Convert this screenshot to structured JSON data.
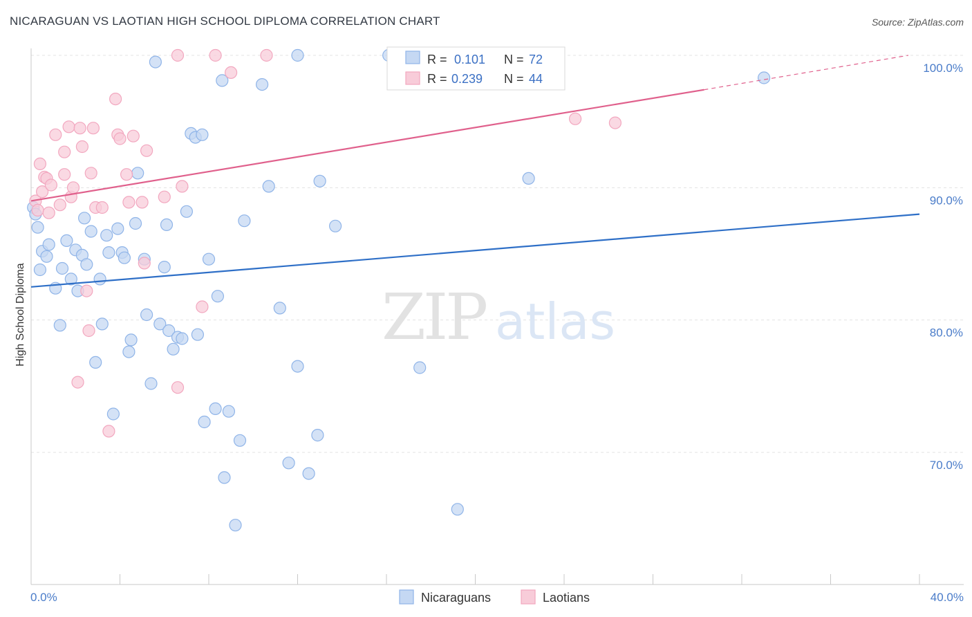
{
  "chart_data": {
    "type": "scatter",
    "title": "NICARAGUAN VS LAOTIAN HIGH SCHOOL DIPLOMA CORRELATION CHART",
    "source": "Source: ZipAtlas.com",
    "ylabel": "High School Diploma",
    "xlim": [
      0,
      40
    ],
    "ylim": [
      60,
      100
    ],
    "x_tick_labels": [
      "0.0%",
      "40.0%"
    ],
    "y_ticks": [
      {
        "value": 100,
        "label": "100.0%"
      },
      {
        "value": 90,
        "label": "90.0%"
      },
      {
        "value": 80,
        "label": "80.0%"
      },
      {
        "value": 70,
        "label": "70.0%"
      }
    ],
    "watermark": {
      "zip": "ZIP",
      "atlas": "atlas"
    },
    "legend": [
      {
        "r_label": "R =",
        "r_value": "0.101",
        "n_label": "N =",
        "n_value": "72"
      },
      {
        "r_label": "R =",
        "r_value": "0.239",
        "n_label": "N =",
        "n_value": "44"
      }
    ],
    "series": [
      {
        "name": "Nicaraguans",
        "color": "#8fb4e8",
        "fill": "#c5d8f3",
        "line_color": "#2e6fc7",
        "trend": {
          "x0": 0,
          "y0": 82.5,
          "x1": 40,
          "y1": 88.0
        },
        "points": [
          [
            0.1,
            88.5
          ],
          [
            0.2,
            88.0
          ],
          [
            0.3,
            87.0
          ],
          [
            0.4,
            83.8
          ],
          [
            0.5,
            85.2
          ],
          [
            0.7,
            84.8
          ],
          [
            0.8,
            85.7
          ],
          [
            1.1,
            82.4
          ],
          [
            1.3,
            79.6
          ],
          [
            1.4,
            83.9
          ],
          [
            1.6,
            86.0
          ],
          [
            1.8,
            83.1
          ],
          [
            2.0,
            85.3
          ],
          [
            2.1,
            82.2
          ],
          [
            2.3,
            84.9
          ],
          [
            2.4,
            87.7
          ],
          [
            2.5,
            84.2
          ],
          [
            2.7,
            86.7
          ],
          [
            2.9,
            76.8
          ],
          [
            3.1,
            83.1
          ],
          [
            3.2,
            79.7
          ],
          [
            3.4,
            86.4
          ],
          [
            3.5,
            85.1
          ],
          [
            3.7,
            72.9
          ],
          [
            3.9,
            86.9
          ],
          [
            4.1,
            85.1
          ],
          [
            4.2,
            84.7
          ],
          [
            4.4,
            77.6
          ],
          [
            4.5,
            78.5
          ],
          [
            4.7,
            87.3
          ],
          [
            4.8,
            91.1
          ],
          [
            5.1,
            84.6
          ],
          [
            5.2,
            80.4
          ],
          [
            5.4,
            75.2
          ],
          [
            5.6,
            99.5
          ],
          [
            5.8,
            79.7
          ],
          [
            6.0,
            84.0
          ],
          [
            6.1,
            87.2
          ],
          [
            6.2,
            79.2
          ],
          [
            6.4,
            77.8
          ],
          [
            6.6,
            78.7
          ],
          [
            6.8,
            78.6
          ],
          [
            7.0,
            88.2
          ],
          [
            7.2,
            94.1
          ],
          [
            7.4,
            93.8
          ],
          [
            7.5,
            78.9
          ],
          [
            7.7,
            94.0
          ],
          [
            7.8,
            72.3
          ],
          [
            8.0,
            84.6
          ],
          [
            8.3,
            73.3
          ],
          [
            8.4,
            81.8
          ],
          [
            8.6,
            98.1
          ],
          [
            8.7,
            68.1
          ],
          [
            8.9,
            73.1
          ],
          [
            9.2,
            64.5
          ],
          [
            9.4,
            70.9
          ],
          [
            9.6,
            87.5
          ],
          [
            10.4,
            97.8
          ],
          [
            10.7,
            90.1
          ],
          [
            11.2,
            80.9
          ],
          [
            11.6,
            69.2
          ],
          [
            12.0,
            76.5
          ],
          [
            12.0,
            100.0
          ],
          [
            12.5,
            68.4
          ],
          [
            12.9,
            71.3
          ],
          [
            13.0,
            90.5
          ],
          [
            13.7,
            87.1
          ],
          [
            16.1,
            100.0
          ],
          [
            17.5,
            76.4
          ],
          [
            19.2,
            65.7
          ],
          [
            22.4,
            90.7
          ],
          [
            33.0,
            98.3
          ]
        ]
      },
      {
        "name": "Laotians",
        "color": "#f2a7bf",
        "fill": "#f8ccd9",
        "line_color": "#e0608c",
        "trend": {
          "x0": 0,
          "y0": 89.0,
          "x1": 30.3,
          "y1": 97.4
        },
        "trend_ext": {
          "x0": 30.3,
          "y0": 97.4,
          "x1": 39.5,
          "y1": 100.0
        },
        "points": [
          [
            0.2,
            89.0
          ],
          [
            0.3,
            88.3
          ],
          [
            0.4,
            91.8
          ],
          [
            0.5,
            89.7
          ],
          [
            0.6,
            90.8
          ],
          [
            0.7,
            90.7
          ],
          [
            0.8,
            88.1
          ],
          [
            0.9,
            90.2
          ],
          [
            1.1,
            94.0
          ],
          [
            1.3,
            88.7
          ],
          [
            1.5,
            91.0
          ],
          [
            1.5,
            92.7
          ],
          [
            1.7,
            94.6
          ],
          [
            1.8,
            89.3
          ],
          [
            1.9,
            90.0
          ],
          [
            2.1,
            75.3
          ],
          [
            2.2,
            94.5
          ],
          [
            2.3,
            93.1
          ],
          [
            2.5,
            82.2
          ],
          [
            2.6,
            79.2
          ],
          [
            2.7,
            91.1
          ],
          [
            2.8,
            94.5
          ],
          [
            2.9,
            88.5
          ],
          [
            3.2,
            88.5
          ],
          [
            3.5,
            71.6
          ],
          [
            3.8,
            96.7
          ],
          [
            3.9,
            94.0
          ],
          [
            4.0,
            93.7
          ],
          [
            4.3,
            91.0
          ],
          [
            4.4,
            88.9
          ],
          [
            4.6,
            93.9
          ],
          [
            5.0,
            88.9
          ],
          [
            5.1,
            84.3
          ],
          [
            5.2,
            92.8
          ],
          [
            6.0,
            89.3
          ],
          [
            6.6,
            100.0
          ],
          [
            6.6,
            74.9
          ],
          [
            6.8,
            90.1
          ],
          [
            7.7,
            81.0
          ],
          [
            8.3,
            100.0
          ],
          [
            9.0,
            98.7
          ],
          [
            10.6,
            100.0
          ],
          [
            24.5,
            95.2
          ],
          [
            26.3,
            94.9
          ]
        ]
      }
    ]
  }
}
